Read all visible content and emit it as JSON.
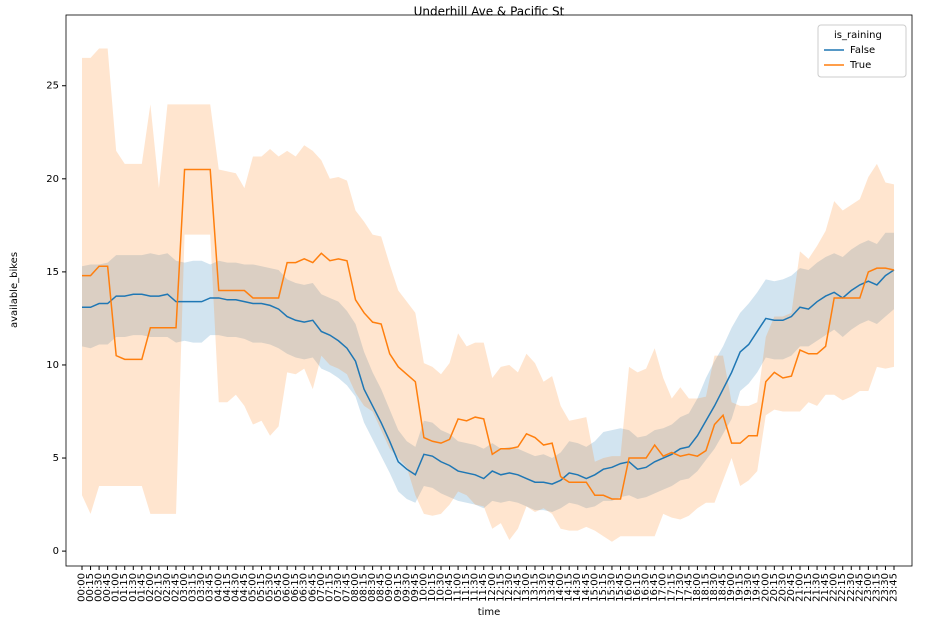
{
  "chart_data": {
    "type": "line",
    "title": "Underhill Ave & Pacific St",
    "x_label": "time",
    "y_label": "available_bikes",
    "legend_title": "is_raining",
    "legend_position": "upper right",
    "ylim": [
      -0.8,
      28.8
    ],
    "yticks": [
      0,
      5,
      10,
      15,
      20,
      25
    ],
    "categories": [
      "00:00",
      "00:15",
      "00:30",
      "00:45",
      "01:00",
      "01:15",
      "01:30",
      "01:45",
      "02:00",
      "02:15",
      "02:30",
      "02:45",
      "03:00",
      "03:15",
      "03:30",
      "03:45",
      "04:00",
      "04:15",
      "04:30",
      "04:45",
      "05:00",
      "05:15",
      "05:30",
      "05:45",
      "06:00",
      "06:15",
      "06:30",
      "06:45",
      "07:00",
      "07:15",
      "07:30",
      "07:45",
      "08:00",
      "08:15",
      "08:30",
      "08:45",
      "09:00",
      "09:15",
      "09:30",
      "09:45",
      "10:00",
      "10:15",
      "10:30",
      "10:45",
      "11:00",
      "11:15",
      "11:30",
      "11:45",
      "12:00",
      "12:15",
      "12:30",
      "12:45",
      "13:00",
      "13:15",
      "13:30",
      "13:45",
      "14:00",
      "14:15",
      "14:30",
      "14:45",
      "15:00",
      "15:15",
      "15:30",
      "15:45",
      "16:00",
      "16:15",
      "16:30",
      "16:45",
      "17:00",
      "17:15",
      "17:30",
      "17:45",
      "18:00",
      "18:15",
      "18:30",
      "18:45",
      "19:00",
      "19:15",
      "19:30",
      "19:45",
      "20:00",
      "20:15",
      "20:30",
      "20:45",
      "21:00",
      "21:15",
      "21:30",
      "21:45",
      "22:00",
      "22:15",
      "22:30",
      "22:45",
      "23:00",
      "23:15",
      "23:30",
      "23:45"
    ],
    "series": [
      {
        "name": "False",
        "color": "#1f77b4",
        "values": [
          13.1,
          13.1,
          13.3,
          13.3,
          13.7,
          13.7,
          13.8,
          13.8,
          13.7,
          13.7,
          13.8,
          13.4,
          13.4,
          13.4,
          13.4,
          13.6,
          13.6,
          13.5,
          13.5,
          13.4,
          13.3,
          13.3,
          13.2,
          13.0,
          12.6,
          12.4,
          12.3,
          12.4,
          11.8,
          11.6,
          11.3,
          10.9,
          10.2,
          8.7,
          7.8,
          6.9,
          5.9,
          4.8,
          4.4,
          4.1,
          5.2,
          5.1,
          4.8,
          4.6,
          4.3,
          4.2,
          4.1,
          3.9,
          4.3,
          4.1,
          4.2,
          4.1,
          3.9,
          3.7,
          3.7,
          3.6,
          3.8,
          4.2,
          4.1,
          3.9,
          4.1,
          4.4,
          4.5,
          4.7,
          4.8,
          4.4,
          4.5,
          4.8,
          5.0,
          5.2,
          5.5,
          5.6,
          6.2,
          7.0,
          7.8,
          8.7,
          9.6,
          10.7,
          11.1,
          11.8,
          12.5,
          12.4,
          12.4,
          12.6,
          13.1,
          13.0,
          13.4,
          13.7,
          13.9,
          13.6,
          14.0,
          14.3,
          14.5,
          14.3,
          14.8,
          15.1
        ],
        "upper": [
          15.3,
          15.4,
          15.4,
          15.5,
          15.9,
          15.9,
          15.9,
          15.9,
          16,
          15.9,
          16,
          15.6,
          15.5,
          15.6,
          15.6,
          15.4,
          15.6,
          15.5,
          15.5,
          15.4,
          15.4,
          15.3,
          15.2,
          15.1,
          14.6,
          14.4,
          14.3,
          14.4,
          13.8,
          13.6,
          13.4,
          12.9,
          12.2,
          10.7,
          9.6,
          8.7,
          7.6,
          6.5,
          5.9,
          5.6,
          7.0,
          6.9,
          6.5,
          6.3,
          5.9,
          5.8,
          5.7,
          5.5,
          5.8,
          5.5,
          5.6,
          5.5,
          5.3,
          5.1,
          5.2,
          5.0,
          5.3,
          5.9,
          5.8,
          5.6,
          5.9,
          6.4,
          6.5,
          6.6,
          6.5,
          6.1,
          6.2,
          6.5,
          6.6,
          6.8,
          7.2,
          7.4,
          8.2,
          9.3,
          10.2,
          11.0,
          12.0,
          12.8,
          13.3,
          13.9,
          14.6,
          14.5,
          14.6,
          14.8,
          15.2,
          15.1,
          15.5,
          15.8,
          16.0,
          15.8,
          16.2,
          16.5,
          16.7,
          16.5,
          17.1,
          17.1
        ],
        "lower": [
          11.0,
          10.9,
          11.1,
          11.1,
          11.5,
          11.5,
          11.6,
          11.6,
          11.5,
          11.5,
          11.5,
          11.2,
          11.3,
          11.2,
          11.2,
          11.6,
          11.6,
          11.5,
          11.5,
          11.4,
          11.2,
          11.2,
          11.1,
          10.9,
          10.6,
          10.4,
          10.3,
          10.4,
          9.8,
          9.6,
          9.3,
          8.9,
          8.3,
          6.9,
          6.0,
          5.1,
          4.2,
          3.2,
          2.8,
          2.6,
          3.5,
          3.4,
          3.1,
          2.9,
          2.7,
          2.6,
          2.5,
          2.3,
          2.7,
          2.6,
          2.7,
          2.6,
          2.4,
          2.2,
          2.2,
          2.1,
          2.3,
          2.6,
          2.5,
          2.3,
          2.4,
          2.7,
          2.7,
          2.9,
          3.0,
          2.8,
          2.9,
          3.1,
          3.3,
          3.5,
          3.8,
          3.9,
          4.3,
          4.9,
          5.5,
          6.3,
          7.1,
          8.6,
          9.0,
          9.6,
          10.4,
          10.3,
          10.3,
          10.5,
          11.0,
          11.0,
          11.3,
          11.6,
          11.9,
          11.5,
          11.9,
          12.2,
          12.4,
          12.2,
          12.6,
          13.0
        ]
      },
      {
        "name": "True",
        "color": "#ff7f0e",
        "values": [
          14.8,
          14.8,
          15.3,
          15.3,
          10.5,
          10.3,
          10.3,
          10.3,
          12,
          12,
          12,
          12,
          20.5,
          20.5,
          20.5,
          20.5,
          14,
          14,
          14,
          14,
          13.6,
          13.6,
          13.6,
          13.6,
          15.5,
          15.5,
          15.7,
          15.5,
          16,
          15.6,
          15.7,
          15.6,
          13.5,
          12.8,
          12.3,
          12.2,
          10.6,
          9.9,
          9.5,
          9.1,
          6.1,
          5.9,
          5.8,
          6.0,
          7.1,
          7.0,
          7.2,
          7.1,
          5.2,
          5.5,
          5.5,
          5.6,
          6.3,
          6.1,
          5.7,
          5.8,
          4.0,
          3.7,
          3.7,
          3.7,
          3.0,
          3.0,
          2.8,
          2.8,
          5.0,
          5.0,
          5.0,
          5.7,
          5.1,
          5.3,
          5.1,
          5.2,
          5.1,
          5.4,
          6.8,
          7.3,
          5.8,
          5.8,
          6.2,
          6.2,
          9.1,
          9.6,
          9.3,
          9.4,
          10.8,
          10.6,
          10.6,
          11.0,
          13.6,
          13.6,
          13.6,
          13.6,
          15.0,
          15.2,
          15.2,
          15.1
        ],
        "upper": [
          26.5,
          26.5,
          27,
          27,
          21.5,
          20.8,
          20.8,
          20.8,
          24,
          19.5,
          24,
          24,
          24,
          24,
          24,
          24,
          20.5,
          20.4,
          20.3,
          19.5,
          21.2,
          21.2,
          21.6,
          21.2,
          21.5,
          21.2,
          21.8,
          21.5,
          21,
          20,
          20.1,
          19.9,
          18.3,
          17.7,
          17,
          16.9,
          15.4,
          14,
          13.4,
          12.8,
          10.1,
          9.9,
          9.5,
          10.1,
          11.7,
          11,
          11.2,
          11.2,
          9.3,
          9.9,
          10,
          9.6,
          10.6,
          10.1,
          9.1,
          9.4,
          7.8,
          7,
          7.1,
          7.2,
          4.8,
          5,
          5.1,
          5.1,
          9.9,
          9.6,
          9.8,
          10.9,
          9.3,
          8.2,
          8.8,
          8.2,
          8.2,
          8.3,
          10.5,
          10.5,
          8,
          7.8,
          7.8,
          8,
          11.5,
          12.6,
          12.6,
          12.8,
          16.1,
          15.7,
          16.4,
          17.2,
          18.8,
          18.3,
          18.6,
          18.9,
          20.1,
          20.8,
          19.8,
          19.7
        ],
        "lower": [
          3,
          2,
          3.5,
          3.5,
          3.5,
          3.5,
          3.5,
          3.5,
          2,
          2,
          2,
          2,
          17,
          17,
          17,
          17,
          8,
          8,
          8.4,
          7.8,
          6.8,
          7,
          6.2,
          6.7,
          9.6,
          9.5,
          9.8,
          8.7,
          10.5,
          10,
          9.8,
          9.5,
          8.5,
          7.8,
          7.5,
          6.5,
          5.5,
          5,
          4.5,
          3,
          2,
          1.9,
          2,
          2.5,
          3.2,
          3,
          2.5,
          2.4,
          1.2,
          1.5,
          0.6,
          1.2,
          2.4,
          2.1,
          2.3,
          2.0,
          1.2,
          1.1,
          1.1,
          1.3,
          1.1,
          0.8,
          0.5,
          0.8,
          0.8,
          0.8,
          0.8,
          0.8,
          2,
          1.8,
          1.7,
          1.9,
          2.3,
          2.6,
          2.6,
          3.8,
          5,
          3.5,
          3.8,
          4.3,
          7.3,
          7.6,
          7.5,
          7.5,
          7.5,
          8,
          7.8,
          8.4,
          8.4,
          8.1,
          8.3,
          8.6,
          8.6,
          9.9,
          9.8,
          9.9
        ]
      }
    ]
  }
}
